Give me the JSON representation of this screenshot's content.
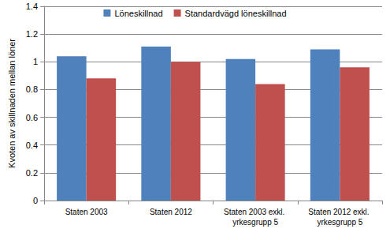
{
  "chart_data": {
    "type": "bar",
    "y_label": "Kvoten av skillnaden mellan löner",
    "categories": [
      "Staten 2003",
      "Staten 2012",
      "Staten 2003 exkl. yrkesgrupp 5",
      "Staten 2012 exkl. yrkesgrupp 5"
    ],
    "series": [
      {
        "name": "Löneskillnad",
        "color": "#4f81bd",
        "values": [
          1.04,
          1.11,
          1.02,
          1.09
        ]
      },
      {
        "name": "Standardvägd löneskillnad",
        "color": "#c0504d",
        "values": [
          0.88,
          1.0,
          0.84,
          0.96
        ]
      }
    ],
    "ylim": [
      0,
      1.4
    ],
    "yticks": [
      0,
      0.2,
      0.4,
      0.6,
      0.8,
      1,
      1.2,
      1.4
    ],
    "grid": true,
    "legend": "top"
  }
}
